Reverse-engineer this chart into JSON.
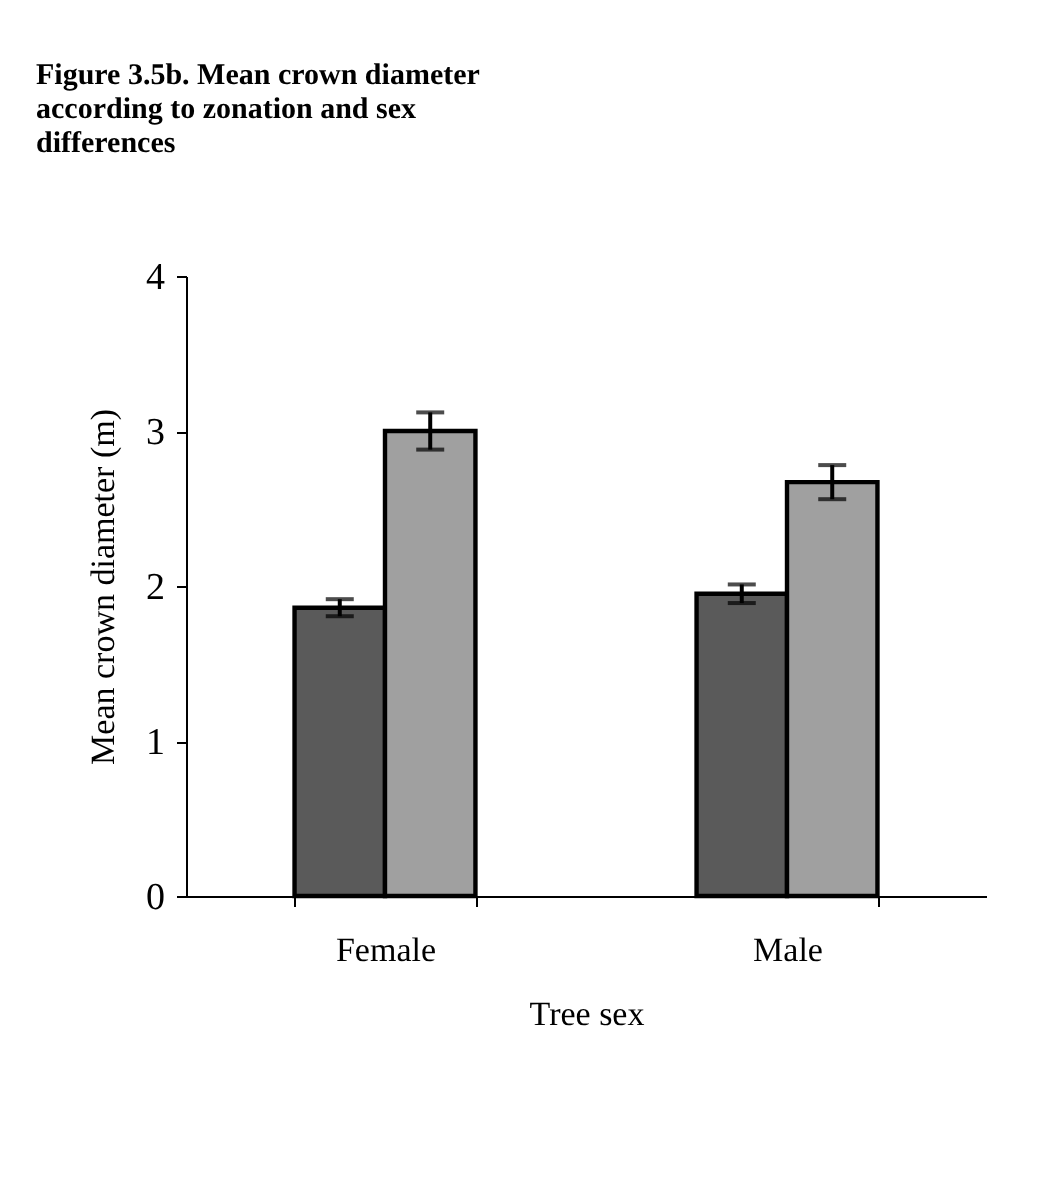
{
  "chart_data": {
    "type": "bar",
    "title": "Figure 3.5b. Mean crown diameter according to zonation and sex differences",
    "xlabel": "Tree sex",
    "ylabel": "Mean crown diameter (m)",
    "categories": [
      "Female",
      "Male"
    ],
    "series": [
      {
        "color": "#5a5a5a",
        "values": [
          1.86,
          1.95
        ],
        "errors": [
          0.055,
          0.06
        ]
      },
      {
        "color": "#a0a0a0",
        "values": [
          3.0,
          2.67
        ],
        "errors": [
          0.12,
          0.11
        ]
      }
    ],
    "ylim": [
      0,
      4
    ],
    "yticks": [
      0,
      1,
      2,
      3,
      4
    ],
    "grid": false
  }
}
